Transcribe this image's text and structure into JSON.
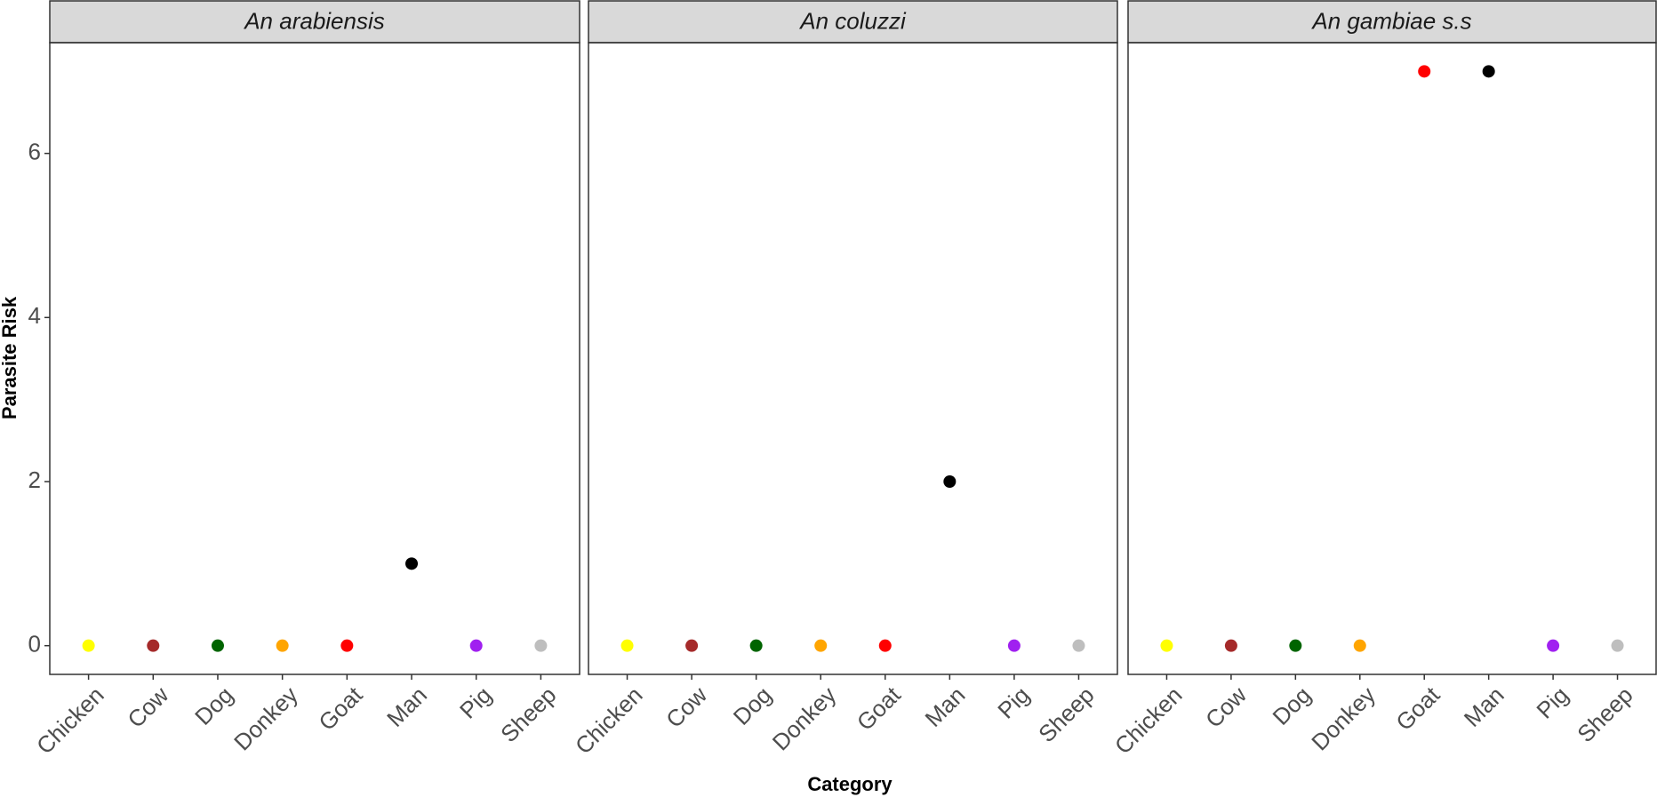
{
  "chart_data": {
    "type": "scatter",
    "x_label": "Category",
    "y_label": "Parasite Risk",
    "categories": [
      "Chicken",
      "Cow",
      "Dog",
      "Donkey",
      "Goat",
      "Man",
      "Pig",
      "Sheep"
    ],
    "colors": [
      "#ffff00",
      "#a52a2a",
      "#006400",
      "#ffa500",
      "#ff0000",
      "#000000",
      "#a020f0",
      "#bebebe"
    ],
    "ylim": [
      -0.35,
      7.35
    ],
    "yticks": [
      0,
      2,
      4,
      6
    ],
    "facets": [
      {
        "title": "An arabiensis",
        "values": [
          0,
          0,
          0,
          0,
          0,
          1,
          0,
          0
        ]
      },
      {
        "title": "An coluzzi",
        "values": [
          0,
          0,
          0,
          0,
          0,
          2,
          0,
          0
        ]
      },
      {
        "title": "An gambiae s.s",
        "values": [
          0,
          0,
          0,
          0,
          7,
          7,
          0,
          0
        ]
      }
    ]
  }
}
